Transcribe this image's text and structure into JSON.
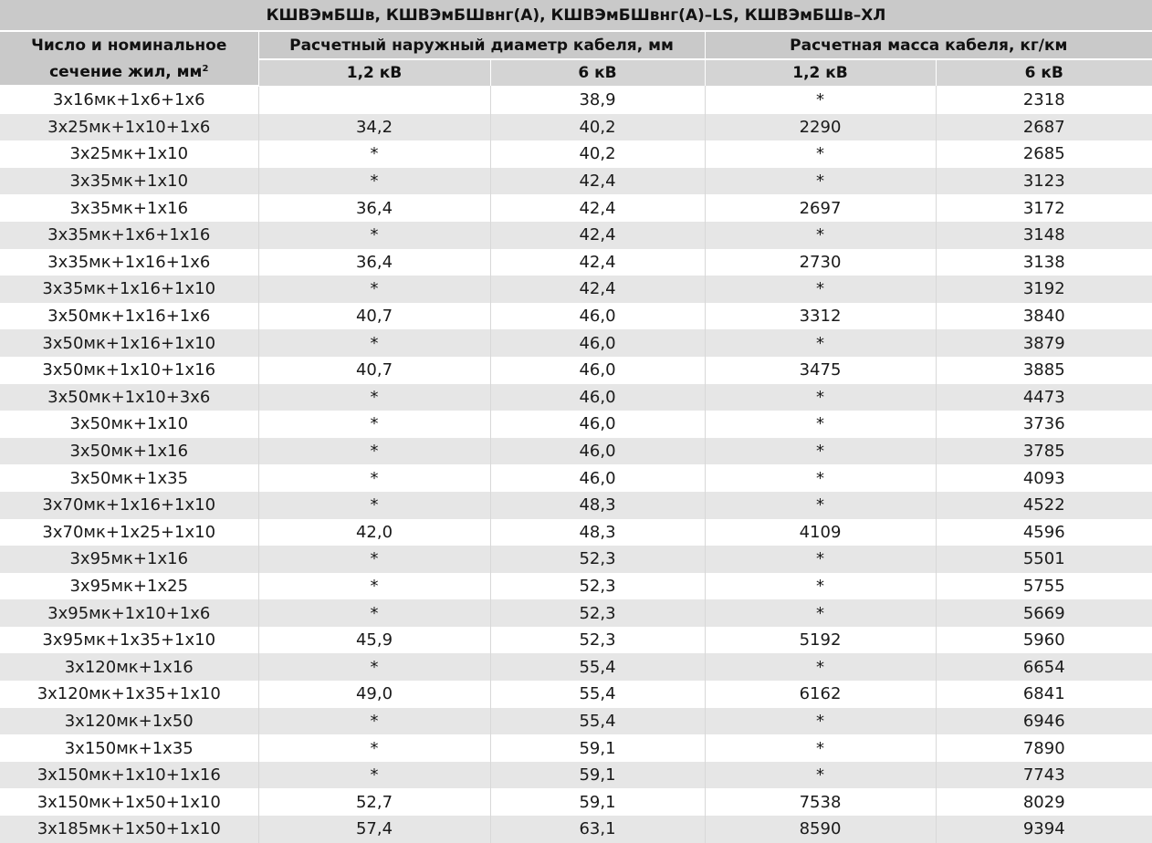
{
  "table": {
    "title": "КШВЭмБШв,  КШВЭмБШвнг(А), КШВЭмБШвнг(А)–LS, КШВЭмБШв–ХЛ",
    "param_header_line1": "Число и номинальное",
    "param_header_line2": "сечение жил, мм",
    "param_header_sup": "2",
    "diameter_header": "Расчетный наружный диаметр кабеля, мм",
    "mass_header": "Расчетная масса кабеля, кг/км",
    "voltage_1": "1,2 кВ",
    "voltage_2": "6 кВ",
    "voltage_3": "1,2 кВ",
    "voltage_4": "6 кВ",
    "rows": [
      {
        "cores": "3х16мк+1х6+1х6",
        "d12": "",
        "d6": "38,9",
        "m12": "*",
        "m6": "2318"
      },
      {
        "cores": "3х25мк+1х10+1х6",
        "d12": "34,2",
        "d6": "40,2",
        "m12": "2290",
        "m6": "2687"
      },
      {
        "cores": "3х25мк+1х10",
        "d12": "*",
        "d6": "40,2",
        "m12": "*",
        "m6": "2685"
      },
      {
        "cores": "3х35мк+1х10",
        "d12": "*",
        "d6": "42,4",
        "m12": "*",
        "m6": "3123"
      },
      {
        "cores": "3х35мк+1х16",
        "d12": "36,4",
        "d6": "42,4",
        "m12": "2697",
        "m6": "3172"
      },
      {
        "cores": "3х35мк+1х6+1х16",
        "d12": "*",
        "d6": "42,4",
        "m12": "*",
        "m6": "3148"
      },
      {
        "cores": "3х35мк+1х16+1х6",
        "d12": "36,4",
        "d6": "42,4",
        "m12": "2730",
        "m6": "3138"
      },
      {
        "cores": "3х35мк+1х16+1х10",
        "d12": "*",
        "d6": "42,4",
        "m12": "*",
        "m6": "3192"
      },
      {
        "cores": "3х50мк+1х16+1х6",
        "d12": "40,7",
        "d6": "46,0",
        "m12": "3312",
        "m6": "3840"
      },
      {
        "cores": "3х50мк+1х16+1х10",
        "d12": "*",
        "d6": "46,0",
        "m12": "*",
        "m6": "3879"
      },
      {
        "cores": "3х50мк+1х10+1х16",
        "d12": "40,7",
        "d6": "46,0",
        "m12": "3475",
        "m6": "3885"
      },
      {
        "cores": "3х50мк+1х10+3х6",
        "d12": "*",
        "d6": "46,0",
        "m12": "*",
        "m6": "4473"
      },
      {
        "cores": "3х50мк+1х10",
        "d12": "*",
        "d6": "46,0",
        "m12": "*",
        "m6": "3736"
      },
      {
        "cores": "3х50мк+1х16",
        "d12": "*",
        "d6": "46,0",
        "m12": "*",
        "m6": "3785"
      },
      {
        "cores": "3х50мк+1х35",
        "d12": "*",
        "d6": "46,0",
        "m12": "*",
        "m6": "4093"
      },
      {
        "cores": "3х70мк+1х16+1х10",
        "d12": "*",
        "d6": "48,3",
        "m12": "*",
        "m6": "4522"
      },
      {
        "cores": "3х70мк+1х25+1х10",
        "d12": "42,0",
        "d6": "48,3",
        "m12": "4109",
        "m6": "4596"
      },
      {
        "cores": "3х95мк+1х16",
        "d12": "*",
        "d6": "52,3",
        "m12": "*",
        "m6": "5501"
      },
      {
        "cores": "3х95мк+1х25",
        "d12": "*",
        "d6": "52,3",
        "m12": "*",
        "m6": "5755"
      },
      {
        "cores": "3х95мк+1х10+1х6",
        "d12": "*",
        "d6": "52,3",
        "m12": "*",
        "m6": "5669"
      },
      {
        "cores": "3х95мк+1х35+1х10",
        "d12": "45,9",
        "d6": "52,3",
        "m12": "5192",
        "m6": "5960"
      },
      {
        "cores": "3х120мк+1х16",
        "d12": "*",
        "d6": "55,4",
        "m12": "*",
        "m6": "6654"
      },
      {
        "cores": "3х120мк+1х35+1х10",
        "d12": "49,0",
        "d6": "55,4",
        "m12": "6162",
        "m6": "6841"
      },
      {
        "cores": "3х120мк+1х50",
        "d12": "*",
        "d6": "55,4",
        "m12": "*",
        "m6": "6946"
      },
      {
        "cores": "3х150мк+1х35",
        "d12": "*",
        "d6": "59,1",
        "m12": "*",
        "m6": "7890"
      },
      {
        "cores": "3х150мк+1х10+1х16",
        "d12": "*",
        "d6": "59,1",
        "m12": "*",
        "m6": "7743"
      },
      {
        "cores": "3х150мк+1х50+1х10",
        "d12": "52,7",
        "d6": "59,1",
        "m12": "7538",
        "m6": "8029"
      },
      {
        "cores": "3х185мк+1х50+1х10",
        "d12": "57,4",
        "d6": "63,1",
        "m12": "8590",
        "m6": "9394"
      }
    ]
  }
}
